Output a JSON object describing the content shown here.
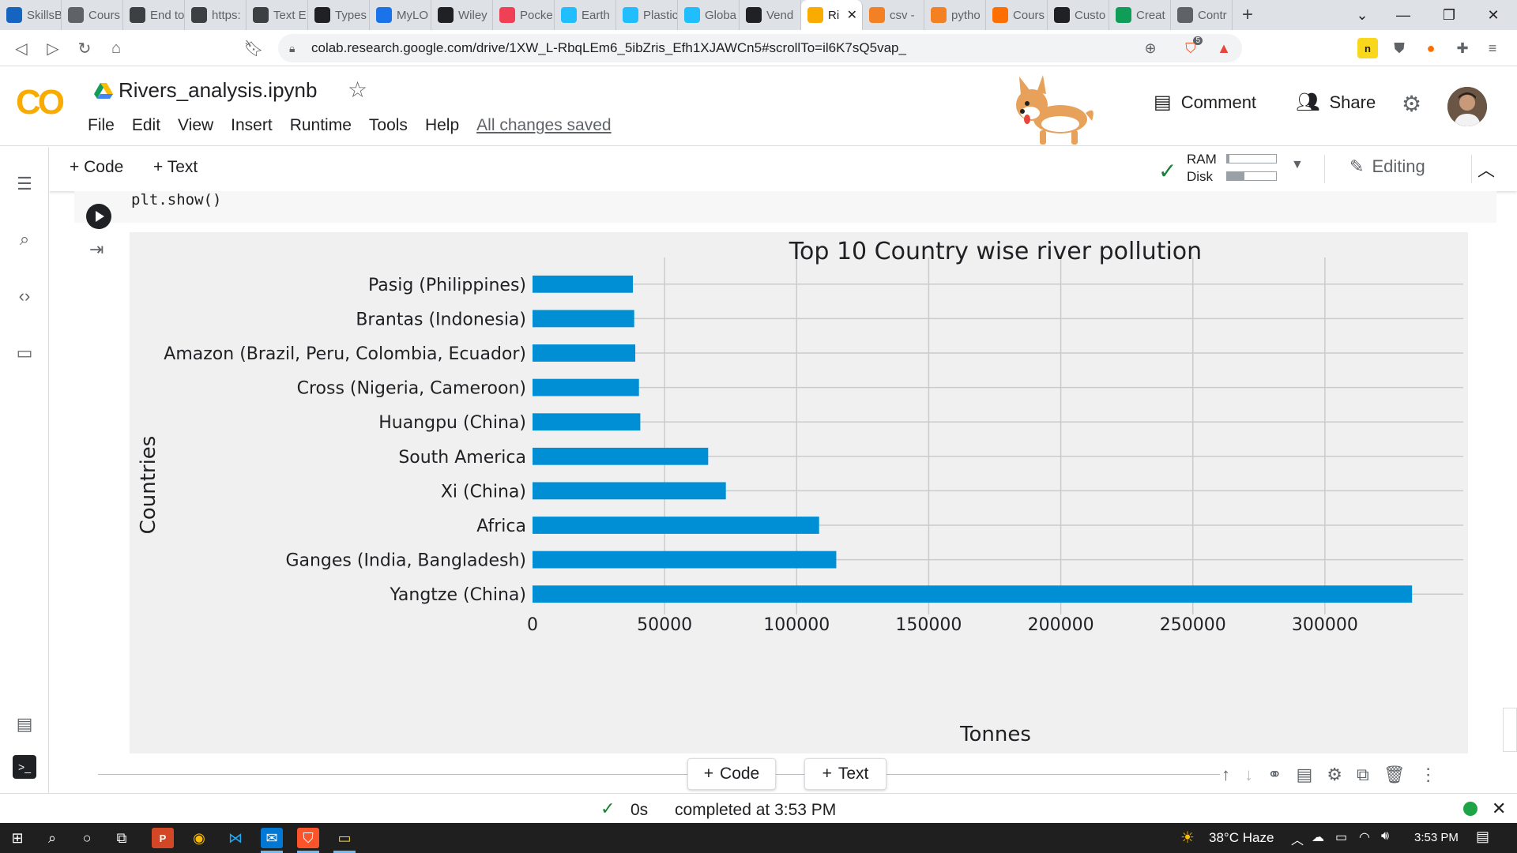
{
  "browser": {
    "tabs": [
      {
        "label": "SkillsB",
        "icon": "yl-icon",
        "color": "#1565c0"
      },
      {
        "label": "Cours",
        "icon": "course-icon",
        "color": "#5f6368"
      },
      {
        "label": "End to",
        "icon": "code-icon",
        "color": "#3c4043"
      },
      {
        "label": "https:",
        "icon": "globe-icon",
        "color": "#3c4043"
      },
      {
        "label": "Text E",
        "icon": "code-icon",
        "color": "#3c4043"
      },
      {
        "label": "Types",
        "icon": "circle-icon",
        "color": "#202124"
      },
      {
        "label": "MyLO",
        "icon": "shield-icon",
        "color": "#1a73e8"
      },
      {
        "label": "Wiley",
        "icon": "w-icon",
        "color": "#202124"
      },
      {
        "label": "Pocke",
        "icon": "pocket-icon",
        "color": "#ef4056"
      },
      {
        "label": "Earth",
        "icon": "k-icon",
        "color": "#20beff"
      },
      {
        "label": "Plastic",
        "icon": "k-icon",
        "color": "#20beff"
      },
      {
        "label": "Globa",
        "icon": "k-icon",
        "color": "#20beff"
      },
      {
        "label": "Vend",
        "icon": "github-icon",
        "color": "#202124"
      },
      {
        "label": "Ri",
        "icon": "colab-icon",
        "color": "#f9ab00",
        "active": true
      },
      {
        "label": "csv -",
        "icon": "stack-icon",
        "color": "#f48024"
      },
      {
        "label": "pytho",
        "icon": "stack-icon",
        "color": "#f48024"
      },
      {
        "label": "Cours",
        "icon": "m-icon",
        "color": "#ff6f00"
      },
      {
        "label": "Custo",
        "icon": "p-icon",
        "color": "#202124"
      },
      {
        "label": "Creat",
        "icon": "gmail-icon",
        "color": "#0f9d58"
      },
      {
        "label": "Contr",
        "icon": "clock-icon",
        "color": "#5f6368"
      }
    ],
    "new_tab": "+",
    "url": "colab.research.google.com/drive/1XW_L-RbqLEm6_5ibZris_Efh1XJAWCn5#scrollTo=il6K7sQ5vap_",
    "brave_badge": "5"
  },
  "colab": {
    "logo": "CO",
    "title": "Rivers_analysis.ipynb",
    "menu": [
      "File",
      "Edit",
      "View",
      "Insert",
      "Runtime",
      "Tools",
      "Help"
    ],
    "save_status": "All changes saved",
    "comment_label": "Comment",
    "share_label": "Share"
  },
  "toolbar": {
    "add_code": "+ Code",
    "add_text": "+ Text",
    "ram_label": "RAM",
    "disk_label": "Disk",
    "ram_fill": 0.05,
    "disk_fill": 0.35,
    "mode_label": "Editing"
  },
  "cell": {
    "code": "plt.show()"
  },
  "chart_data": {
    "type": "bar",
    "orientation": "horizontal",
    "title": "Top 10 Country wise river pollution",
    "xlabel": "Tonnes",
    "ylabel": "Countries",
    "categories": [
      "Pasig (Philippines)",
      "Brantas (Indonesia)",
      "Amazon (Brazil, Peru, Colombia, Ecuador)",
      "Cross (Nigeria, Cameroon)",
      "Huangpu (China)",
      "South America",
      "Xi (China)",
      "Africa",
      "Ganges (India, Bangladesh)",
      "Yangtze (China)"
    ],
    "values": [
      38000,
      38500,
      38900,
      40300,
      40800,
      66500,
      73200,
      108500,
      115000,
      333000
    ],
    "xlim": [
      0,
      350000
    ],
    "xticks": [
      0,
      50000,
      100000,
      150000,
      200000,
      250000,
      300000
    ],
    "grid": true,
    "bar_color": "#008fd5",
    "background": "#f0f0f0"
  },
  "bottom": {
    "add_code": "Code",
    "add_text": "Text",
    "exec_time": "0s",
    "status": "completed at 3:53 PM"
  },
  "taskbar": {
    "weather": "38°C  Haze",
    "time": "3:53 PM"
  }
}
